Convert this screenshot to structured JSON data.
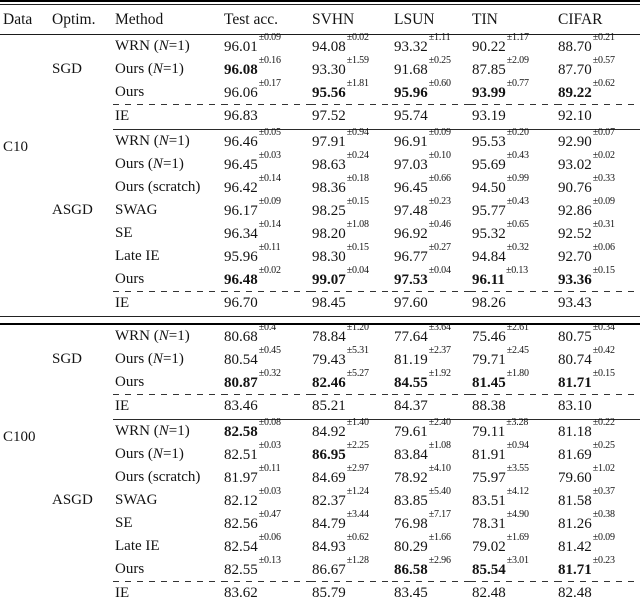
{
  "colors": {
    "background": "#ffffff",
    "text": "#131313",
    "rule": "#000000"
  },
  "header": {
    "data": "Data",
    "optim": "Optim.",
    "method": "Method",
    "cols": [
      "Test acc.",
      "SVHN",
      "LSUN",
      "TIN",
      "CIFAR"
    ]
  },
  "groups": [
    {
      "dataset": "C10",
      "blocks": [
        {
          "optim": "SGD",
          "rows": [
            {
              "method": [
                {
                  "t": "WRN ("
                },
                {
                  "t": "N",
                  "i": true
                },
                {
                  "t": "=1)"
                }
              ],
              "cells": [
                {
                  "v": "96.01",
                  "pm": "±0.09"
                },
                {
                  "v": "94.08",
                  "pm": "±0.02"
                },
                {
                  "v": "93.32",
                  "pm": "±1.11"
                },
                {
                  "v": "90.22",
                  "pm": "±1.17"
                },
                {
                  "v": "88.70",
                  "pm": "±0.21"
                }
              ]
            },
            {
              "method": [
                {
                  "t": "Ours ("
                },
                {
                  "t": "N",
                  "i": true
                },
                {
                  "t": "=1)"
                }
              ],
              "cells": [
                {
                  "v": "96.08",
                  "pm": "±0.16",
                  "b": true
                },
                {
                  "v": "93.30",
                  "pm": "±1.59"
                },
                {
                  "v": "91.68",
                  "pm": "±0.25"
                },
                {
                  "v": "87.85",
                  "pm": "±2.09"
                },
                {
                  "v": "87.70",
                  "pm": "±0.57"
                }
              ]
            },
            {
              "method": [
                {
                  "t": "Ours"
                }
              ],
              "cells": [
                {
                  "v": "96.06",
                  "pm": "±0.17"
                },
                {
                  "v": "95.56",
                  "pm": "±1.81",
                  "b": true
                },
                {
                  "v": "95.96",
                  "pm": "±0.60",
                  "b": true
                },
                {
                  "v": "93.99",
                  "pm": "±0.77",
                  "b": true
                },
                {
                  "v": "89.22",
                  "pm": "±0.62",
                  "b": true
                }
              ]
            }
          ],
          "ie": {
            "label": "IE",
            "values": [
              "96.83",
              "97.52",
              "95.74",
              "93.19",
              "92.10"
            ]
          }
        },
        {
          "optim": "ASGD",
          "rows": [
            {
              "method": [
                {
                  "t": "WRN ("
                },
                {
                  "t": "N",
                  "i": true
                },
                {
                  "t": "=1)"
                }
              ],
              "cells": [
                {
                  "v": "96.46",
                  "pm": "±0.05"
                },
                {
                  "v": "97.91",
                  "pm": "±0.94"
                },
                {
                  "v": "96.91",
                  "pm": "±0.09"
                },
                {
                  "v": "95.53",
                  "pm": "±0.20"
                },
                {
                  "v": "92.90",
                  "pm": "±0.07"
                }
              ]
            },
            {
              "method": [
                {
                  "t": "Ours ("
                },
                {
                  "t": "N",
                  "i": true
                },
                {
                  "t": "=1)"
                }
              ],
              "cells": [
                {
                  "v": "96.45",
                  "pm": "±0.03"
                },
                {
                  "v": "98.63",
                  "pm": "±0.24"
                },
                {
                  "v": "97.03",
                  "pm": "±0.10"
                },
                {
                  "v": "95.69",
                  "pm": "±0.43"
                },
                {
                  "v": "93.02",
                  "pm": "±0.02"
                }
              ]
            },
            {
              "method": [
                {
                  "t": "Ours (scratch)"
                }
              ],
              "cells": [
                {
                  "v": "96.42",
                  "pm": "±0.14"
                },
                {
                  "v": "98.36",
                  "pm": "±0.18"
                },
                {
                  "v": "96.45",
                  "pm": "±0.66"
                },
                {
                  "v": "94.50",
                  "pm": "±0.99"
                },
                {
                  "v": "90.76",
                  "pm": "±0.33"
                }
              ]
            },
            {
              "method": [
                {
                  "t": "SWAG"
                }
              ],
              "cells": [
                {
                  "v": "96.17",
                  "pm": "±0.09"
                },
                {
                  "v": "98.25",
                  "pm": "±0.15"
                },
                {
                  "v": "97.48",
                  "pm": "±0.23"
                },
                {
                  "v": "95.77",
                  "pm": "±0.43"
                },
                {
                  "v": "92.86",
                  "pm": "±0.09"
                }
              ]
            },
            {
              "method": [
                {
                  "t": "SE"
                }
              ],
              "cells": [
                {
                  "v": "96.34",
                  "pm": "±0.14"
                },
                {
                  "v": "98.20",
                  "pm": "±1.08"
                },
                {
                  "v": "96.92",
                  "pm": "±0.46"
                },
                {
                  "v": "95.32",
                  "pm": "±0.65"
                },
                {
                  "v": "92.52",
                  "pm": "±0.31"
                }
              ]
            },
            {
              "method": [
                {
                  "t": "Late IE"
                }
              ],
              "cells": [
                {
                  "v": "95.96",
                  "pm": "±0.11"
                },
                {
                  "v": "98.30",
                  "pm": "±0.15"
                },
                {
                  "v": "96.77",
                  "pm": "±0.27"
                },
                {
                  "v": "94.84",
                  "pm": "±0.32"
                },
                {
                  "v": "92.70",
                  "pm": "±0.06"
                }
              ]
            },
            {
              "method": [
                {
                  "t": "Ours"
                }
              ],
              "cells": [
                {
                  "v": "96.48",
                  "pm": "±0.02",
                  "b": true
                },
                {
                  "v": "99.07",
                  "pm": "±0.04",
                  "b": true
                },
                {
                  "v": "97.53",
                  "pm": "±0.04",
                  "b": true
                },
                {
                  "v": "96.11",
                  "pm": "±0.13",
                  "b": true
                },
                {
                  "v": "93.36",
                  "pm": "±0.15",
                  "b": true
                }
              ]
            }
          ],
          "ie": {
            "label": "IE",
            "values": [
              "96.70",
              "98.45",
              "97.60",
              "98.26",
              "93.43"
            ]
          }
        }
      ]
    },
    {
      "dataset": "C100",
      "blocks": [
        {
          "optim": "SGD",
          "rows": [
            {
              "method": [
                {
                  "t": "WRN ("
                },
                {
                  "t": "N",
                  "i": true
                },
                {
                  "t": "=1)"
                }
              ],
              "cells": [
                {
                  "v": "80.68",
                  "pm": "±0.4"
                },
                {
                  "v": "78.84",
                  "pm": "±1.20"
                },
                {
                  "v": "77.64",
                  "pm": "±3.64"
                },
                {
                  "v": "75.46",
                  "pm": "±2.61"
                },
                {
                  "v": "80.75",
                  "pm": "±0.34"
                }
              ]
            },
            {
              "method": [
                {
                  "t": "Ours ("
                },
                {
                  "t": "N",
                  "i": true
                },
                {
                  "t": "=1)"
                }
              ],
              "cells": [
                {
                  "v": "80.54",
                  "pm": "±0.45"
                },
                {
                  "v": "79.43",
                  "pm": "±5.31"
                },
                {
                  "v": "81.19",
                  "pm": "±2.37"
                },
                {
                  "v": "79.71",
                  "pm": "±2.45"
                },
                {
                  "v": "80.74",
                  "pm": "±0.42"
                }
              ]
            },
            {
              "method": [
                {
                  "t": "Ours"
                }
              ],
              "cells": [
                {
                  "v": "80.87",
                  "pm": "±0.32",
                  "b": true
                },
                {
                  "v": "82.46",
                  "pm": "±5.27",
                  "b": true
                },
                {
                  "v": "84.55",
                  "pm": "±1.92",
                  "b": true
                },
                {
                  "v": "81.45",
                  "pm": "±1.80",
                  "b": true
                },
                {
                  "v": "81.71",
                  "pm": "±0.15",
                  "b": true
                }
              ]
            }
          ],
          "ie": {
            "label": "IE",
            "values": [
              "83.46",
              "85.21",
              "84.37",
              "88.38",
              "83.10"
            ]
          }
        },
        {
          "optim": "ASGD",
          "rows": [
            {
              "method": [
                {
                  "t": "WRN ("
                },
                {
                  "t": "N",
                  "i": true
                },
                {
                  "t": "=1)"
                }
              ],
              "cells": [
                {
                  "v": "82.58",
                  "pm": "±0.08",
                  "b": true
                },
                {
                  "v": "84.92",
                  "pm": "±1.40"
                },
                {
                  "v": "79.61",
                  "pm": "±2.40"
                },
                {
                  "v": "79.11",
                  "pm": "±3.28"
                },
                {
                  "v": "81.18",
                  "pm": "±0.22"
                }
              ]
            },
            {
              "method": [
                {
                  "t": "Ours ("
                },
                {
                  "t": "N",
                  "i": true
                },
                {
                  "t": "=1)"
                }
              ],
              "cells": [
                {
                  "v": "82.51",
                  "pm": "±0.03"
                },
                {
                  "v": "86.95",
                  "pm": "±2.25",
                  "b": true
                },
                {
                  "v": "83.84",
                  "pm": "±1.08"
                },
                {
                  "v": "81.91",
                  "pm": "±0.94"
                },
                {
                  "v": "81.69",
                  "pm": "±0.25"
                }
              ]
            },
            {
              "method": [
                {
                  "t": "Ours (scratch)"
                }
              ],
              "cells": [
                {
                  "v": "81.97",
                  "pm": "±0.11"
                },
                {
                  "v": "84.69",
                  "pm": "±2.97"
                },
                {
                  "v": "78.92",
                  "pm": "±4.10"
                },
                {
                  "v": "75.97",
                  "pm": "±3.55"
                },
                {
                  "v": "79.60",
                  "pm": "±1.02"
                }
              ]
            },
            {
              "method": [
                {
                  "t": "SWAG"
                }
              ],
              "cells": [
                {
                  "v": "82.12",
                  "pm": "±0.03"
                },
                {
                  "v": "82.37",
                  "pm": "±1.24"
                },
                {
                  "v": "83.85",
                  "pm": "±5.40"
                },
                {
                  "v": "83.51",
                  "pm": "±4.12"
                },
                {
                  "v": "81.58",
                  "pm": "±0.37"
                }
              ]
            },
            {
              "method": [
                {
                  "t": "SE"
                }
              ],
              "cells": [
                {
                  "v": "82.56",
                  "pm": "±0.47"
                },
                {
                  "v": "84.79",
                  "pm": "±3.44"
                },
                {
                  "v": "76.98",
                  "pm": "±7.17"
                },
                {
                  "v": "78.31",
                  "pm": "±4.90"
                },
                {
                  "v": "81.26",
                  "pm": "±0.38"
                }
              ]
            },
            {
              "method": [
                {
                  "t": "Late IE"
                }
              ],
              "cells": [
                {
                  "v": "82.54",
                  "pm": "±0.06"
                },
                {
                  "v": "84.93",
                  "pm": "±0.62"
                },
                {
                  "v": "80.29",
                  "pm": "±1.66"
                },
                {
                  "v": "79.02",
                  "pm": "±1.69"
                },
                {
                  "v": "81.42",
                  "pm": "±0.09"
                }
              ]
            },
            {
              "method": [
                {
                  "t": "Ours"
                }
              ],
              "cells": [
                {
                  "v": "82.55",
                  "pm": "±0.13"
                },
                {
                  "v": "86.67",
                  "pm": "±1.28"
                },
                {
                  "v": "86.58",
                  "pm": "±2.96",
                  "b": true
                },
                {
                  "v": "85.54",
                  "pm": "±3.01",
                  "b": true
                },
                {
                  "v": "81.71",
                  "pm": "±0.23",
                  "b": true
                }
              ]
            }
          ],
          "ie": {
            "label": "IE",
            "values": [
              "83.62",
              "85.79",
              "83.45",
              "82.48",
              "82.48"
            ]
          }
        }
      ]
    }
  ]
}
